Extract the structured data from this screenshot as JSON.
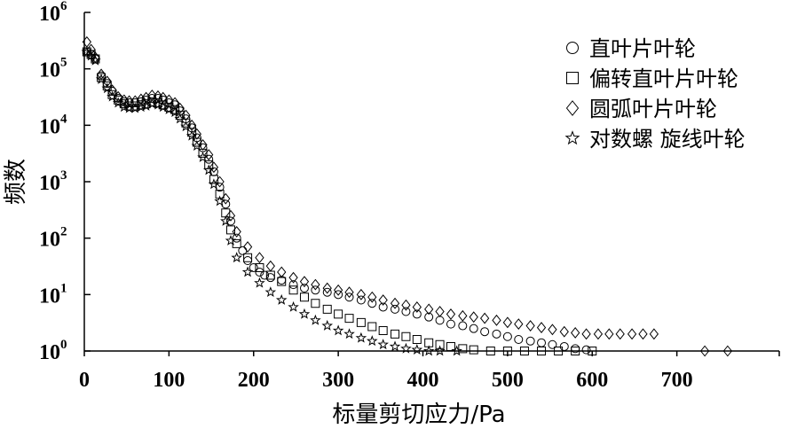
{
  "chart_data": {
    "type": "scatter",
    "title": "",
    "xlabel": "标量剪切应力/Pa",
    "ylabel": "频数",
    "xlim": [
      0,
      800
    ],
    "ylim_log10": [
      0,
      6
    ],
    "yscale": "log",
    "x_ticks": [
      0,
      100,
      200,
      300,
      400,
      500,
      600,
      700
    ],
    "y_ticks": [
      {
        "base": "10",
        "exp": "0"
      },
      {
        "base": "10",
        "exp": "1"
      },
      {
        "base": "10",
        "exp": "2"
      },
      {
        "base": "10",
        "exp": "3"
      },
      {
        "base": "10",
        "exp": "4"
      },
      {
        "base": "10",
        "exp": "5"
      },
      {
        "base": "10",
        "exp": "6"
      }
    ],
    "legend_position": "top-right",
    "series": [
      {
        "name": "直叶片叶轮",
        "marker": "circle",
        "points": [
          [
            3,
            200000
          ],
          [
            8,
            180000
          ],
          [
            13,
            150000
          ],
          [
            20,
            75000
          ],
          [
            27,
            55000
          ],
          [
            33,
            40000
          ],
          [
            40,
            30000
          ],
          [
            47,
            26000
          ],
          [
            53,
            25000
          ],
          [
            60,
            25000
          ],
          [
            67,
            26000
          ],
          [
            73,
            28000
          ],
          [
            80,
            30000
          ],
          [
            87,
            30000
          ],
          [
            93,
            28000
          ],
          [
            100,
            25000
          ],
          [
            107,
            23000
          ],
          [
            113,
            18000
          ],
          [
            120,
            13000
          ],
          [
            127,
            9000
          ],
          [
            133,
            6000
          ],
          [
            140,
            4000
          ],
          [
            147,
            2500
          ],
          [
            153,
            1500
          ],
          [
            160,
            800
          ],
          [
            167,
            400
          ],
          [
            173,
            200
          ],
          [
            180,
            100
          ],
          [
            187,
            60
          ],
          [
            193,
            40
          ],
          [
            200,
            30
          ],
          [
            207,
            25
          ],
          [
            213,
            22
          ],
          [
            220,
            20
          ],
          [
            233,
            18
          ],
          [
            247,
            15
          ],
          [
            260,
            13
          ],
          [
            273,
            12
          ],
          [
            287,
            11
          ],
          [
            300,
            10
          ],
          [
            313,
            9
          ],
          [
            327,
            8
          ],
          [
            340,
            7
          ],
          [
            353,
            6
          ],
          [
            367,
            5.5
          ],
          [
            380,
            5
          ],
          [
            393,
            4.5
          ],
          [
            407,
            4
          ],
          [
            420,
            3.5
          ],
          [
            433,
            3
          ],
          [
            447,
            2.8
          ],
          [
            460,
            2.5
          ],
          [
            473,
            2.2
          ],
          [
            487,
            2
          ],
          [
            500,
            1.8
          ],
          [
            513,
            1.6
          ],
          [
            527,
            1.5
          ],
          [
            540,
            1.4
          ],
          [
            553,
            1.3
          ],
          [
            567,
            1.2
          ],
          [
            580,
            1.1
          ],
          [
            593,
            1.05
          ]
        ]
      },
      {
        "name": "偏转直叶片叶轮",
        "marker": "square",
        "points": [
          [
            3,
            200000
          ],
          [
            8,
            180000
          ],
          [
            13,
            150000
          ],
          [
            20,
            70000
          ],
          [
            27,
            50000
          ],
          [
            33,
            35000
          ],
          [
            40,
            28000
          ],
          [
            47,
            24000
          ],
          [
            53,
            22000
          ],
          [
            60,
            22000
          ],
          [
            67,
            23000
          ],
          [
            73,
            24000
          ],
          [
            80,
            26000
          ],
          [
            87,
            25000
          ],
          [
            93,
            23000
          ],
          [
            100,
            21000
          ],
          [
            107,
            19000
          ],
          [
            113,
            15000
          ],
          [
            120,
            11000
          ],
          [
            127,
            7500
          ],
          [
            133,
            5000
          ],
          [
            140,
            3200
          ],
          [
            147,
            2000
          ],
          [
            153,
            1100
          ],
          [
            160,
            600
          ],
          [
            167,
            280
          ],
          [
            173,
            140
          ],
          [
            180,
            80
          ],
          [
            193,
            45
          ],
          [
            207,
            30
          ],
          [
            220,
            22
          ],
          [
            233,
            17
          ],
          [
            247,
            12
          ],
          [
            260,
            9
          ],
          [
            273,
            7
          ],
          [
            287,
            5.5
          ],
          [
            300,
            4.5
          ],
          [
            313,
            3.8
          ],
          [
            327,
            3.2
          ],
          [
            340,
            2.7
          ],
          [
            353,
            2.3
          ],
          [
            367,
            2
          ],
          [
            380,
            1.8
          ],
          [
            393,
            1.6
          ],
          [
            407,
            1.4
          ],
          [
            420,
            1.3
          ],
          [
            433,
            1.2
          ],
          [
            447,
            1.1
          ],
          [
            460,
            1.05
          ],
          [
            480,
            1
          ],
          [
            500,
            1
          ],
          [
            520,
            1
          ],
          [
            540,
            1
          ],
          [
            560,
            1
          ],
          [
            580,
            1
          ],
          [
            600,
            1
          ]
        ]
      },
      {
        "name": "圆弧叶片叶轮",
        "marker": "diamond",
        "points": [
          [
            3,
            300000
          ],
          [
            8,
            220000
          ],
          [
            13,
            160000
          ],
          [
            20,
            80000
          ],
          [
            27,
            60000
          ],
          [
            33,
            42000
          ],
          [
            40,
            32000
          ],
          [
            47,
            28000
          ],
          [
            53,
            27000
          ],
          [
            60,
            27000
          ],
          [
            67,
            29000
          ],
          [
            73,
            31000
          ],
          [
            80,
            34000
          ],
          [
            87,
            33000
          ],
          [
            93,
            31000
          ],
          [
            100,
            28000
          ],
          [
            107,
            25000
          ],
          [
            113,
            20000
          ],
          [
            120,
            15000
          ],
          [
            127,
            10000
          ],
          [
            133,
            7000
          ],
          [
            140,
            4500
          ],
          [
            147,
            3000
          ],
          [
            153,
            1800
          ],
          [
            160,
            1000
          ],
          [
            167,
            500
          ],
          [
            173,
            250
          ],
          [
            180,
            130
          ],
          [
            193,
            70
          ],
          [
            207,
            45
          ],
          [
            220,
            32
          ],
          [
            233,
            25
          ],
          [
            247,
            20
          ],
          [
            260,
            17
          ],
          [
            273,
            15
          ],
          [
            287,
            13
          ],
          [
            300,
            12
          ],
          [
            313,
            11
          ],
          [
            327,
            10
          ],
          [
            340,
            9
          ],
          [
            353,
            8
          ],
          [
            367,
            7
          ],
          [
            380,
            6.5
          ],
          [
            393,
            6
          ],
          [
            407,
            5.5
          ],
          [
            420,
            5
          ],
          [
            433,
            4.5
          ],
          [
            447,
            4.2
          ],
          [
            460,
            4
          ],
          [
            473,
            3.8
          ],
          [
            487,
            3.5
          ],
          [
            500,
            3.2
          ],
          [
            513,
            3
          ],
          [
            527,
            2.8
          ],
          [
            540,
            2.6
          ],
          [
            553,
            2.4
          ],
          [
            567,
            2.2
          ],
          [
            580,
            2.1
          ],
          [
            593,
            2
          ],
          [
            607,
            2
          ],
          [
            620,
            2
          ],
          [
            633,
            2
          ],
          [
            647,
            2
          ],
          [
            660,
            2
          ],
          [
            673,
            2
          ],
          [
            733,
            1
          ],
          [
            760,
            1
          ]
        ]
      },
      {
        "name": "对数螺 旋线叶轮",
        "marker": "star",
        "points": [
          [
            3,
            200000
          ],
          [
            8,
            170000
          ],
          [
            13,
            140000
          ],
          [
            20,
            65000
          ],
          [
            27,
            45000
          ],
          [
            33,
            32000
          ],
          [
            40,
            25000
          ],
          [
            47,
            21000
          ],
          [
            53,
            20000
          ],
          [
            60,
            20000
          ],
          [
            67,
            21000
          ],
          [
            73,
            22000
          ],
          [
            80,
            24000
          ],
          [
            87,
            23000
          ],
          [
            93,
            21000
          ],
          [
            100,
            19000
          ],
          [
            107,
            17000
          ],
          [
            113,
            13000
          ],
          [
            120,
            9500
          ],
          [
            127,
            6500
          ],
          [
            133,
            4300
          ],
          [
            140,
            2700
          ],
          [
            147,
            1600
          ],
          [
            153,
            900
          ],
          [
            160,
            450
          ],
          [
            167,
            200
          ],
          [
            173,
            90
          ],
          [
            180,
            45
          ],
          [
            193,
            25
          ],
          [
            207,
            16
          ],
          [
            220,
            11
          ],
          [
            233,
            8
          ],
          [
            247,
            6
          ],
          [
            260,
            4.5
          ],
          [
            273,
            3.5
          ],
          [
            287,
            2.8
          ],
          [
            300,
            2.3
          ],
          [
            313,
            2
          ],
          [
            327,
            1.7
          ],
          [
            340,
            1.5
          ],
          [
            353,
            1.3
          ],
          [
            367,
            1.2
          ],
          [
            380,
            1.1
          ],
          [
            393,
            1.05
          ],
          [
            407,
            1
          ],
          [
            420,
            1
          ],
          [
            440,
            1
          ]
        ]
      }
    ]
  }
}
